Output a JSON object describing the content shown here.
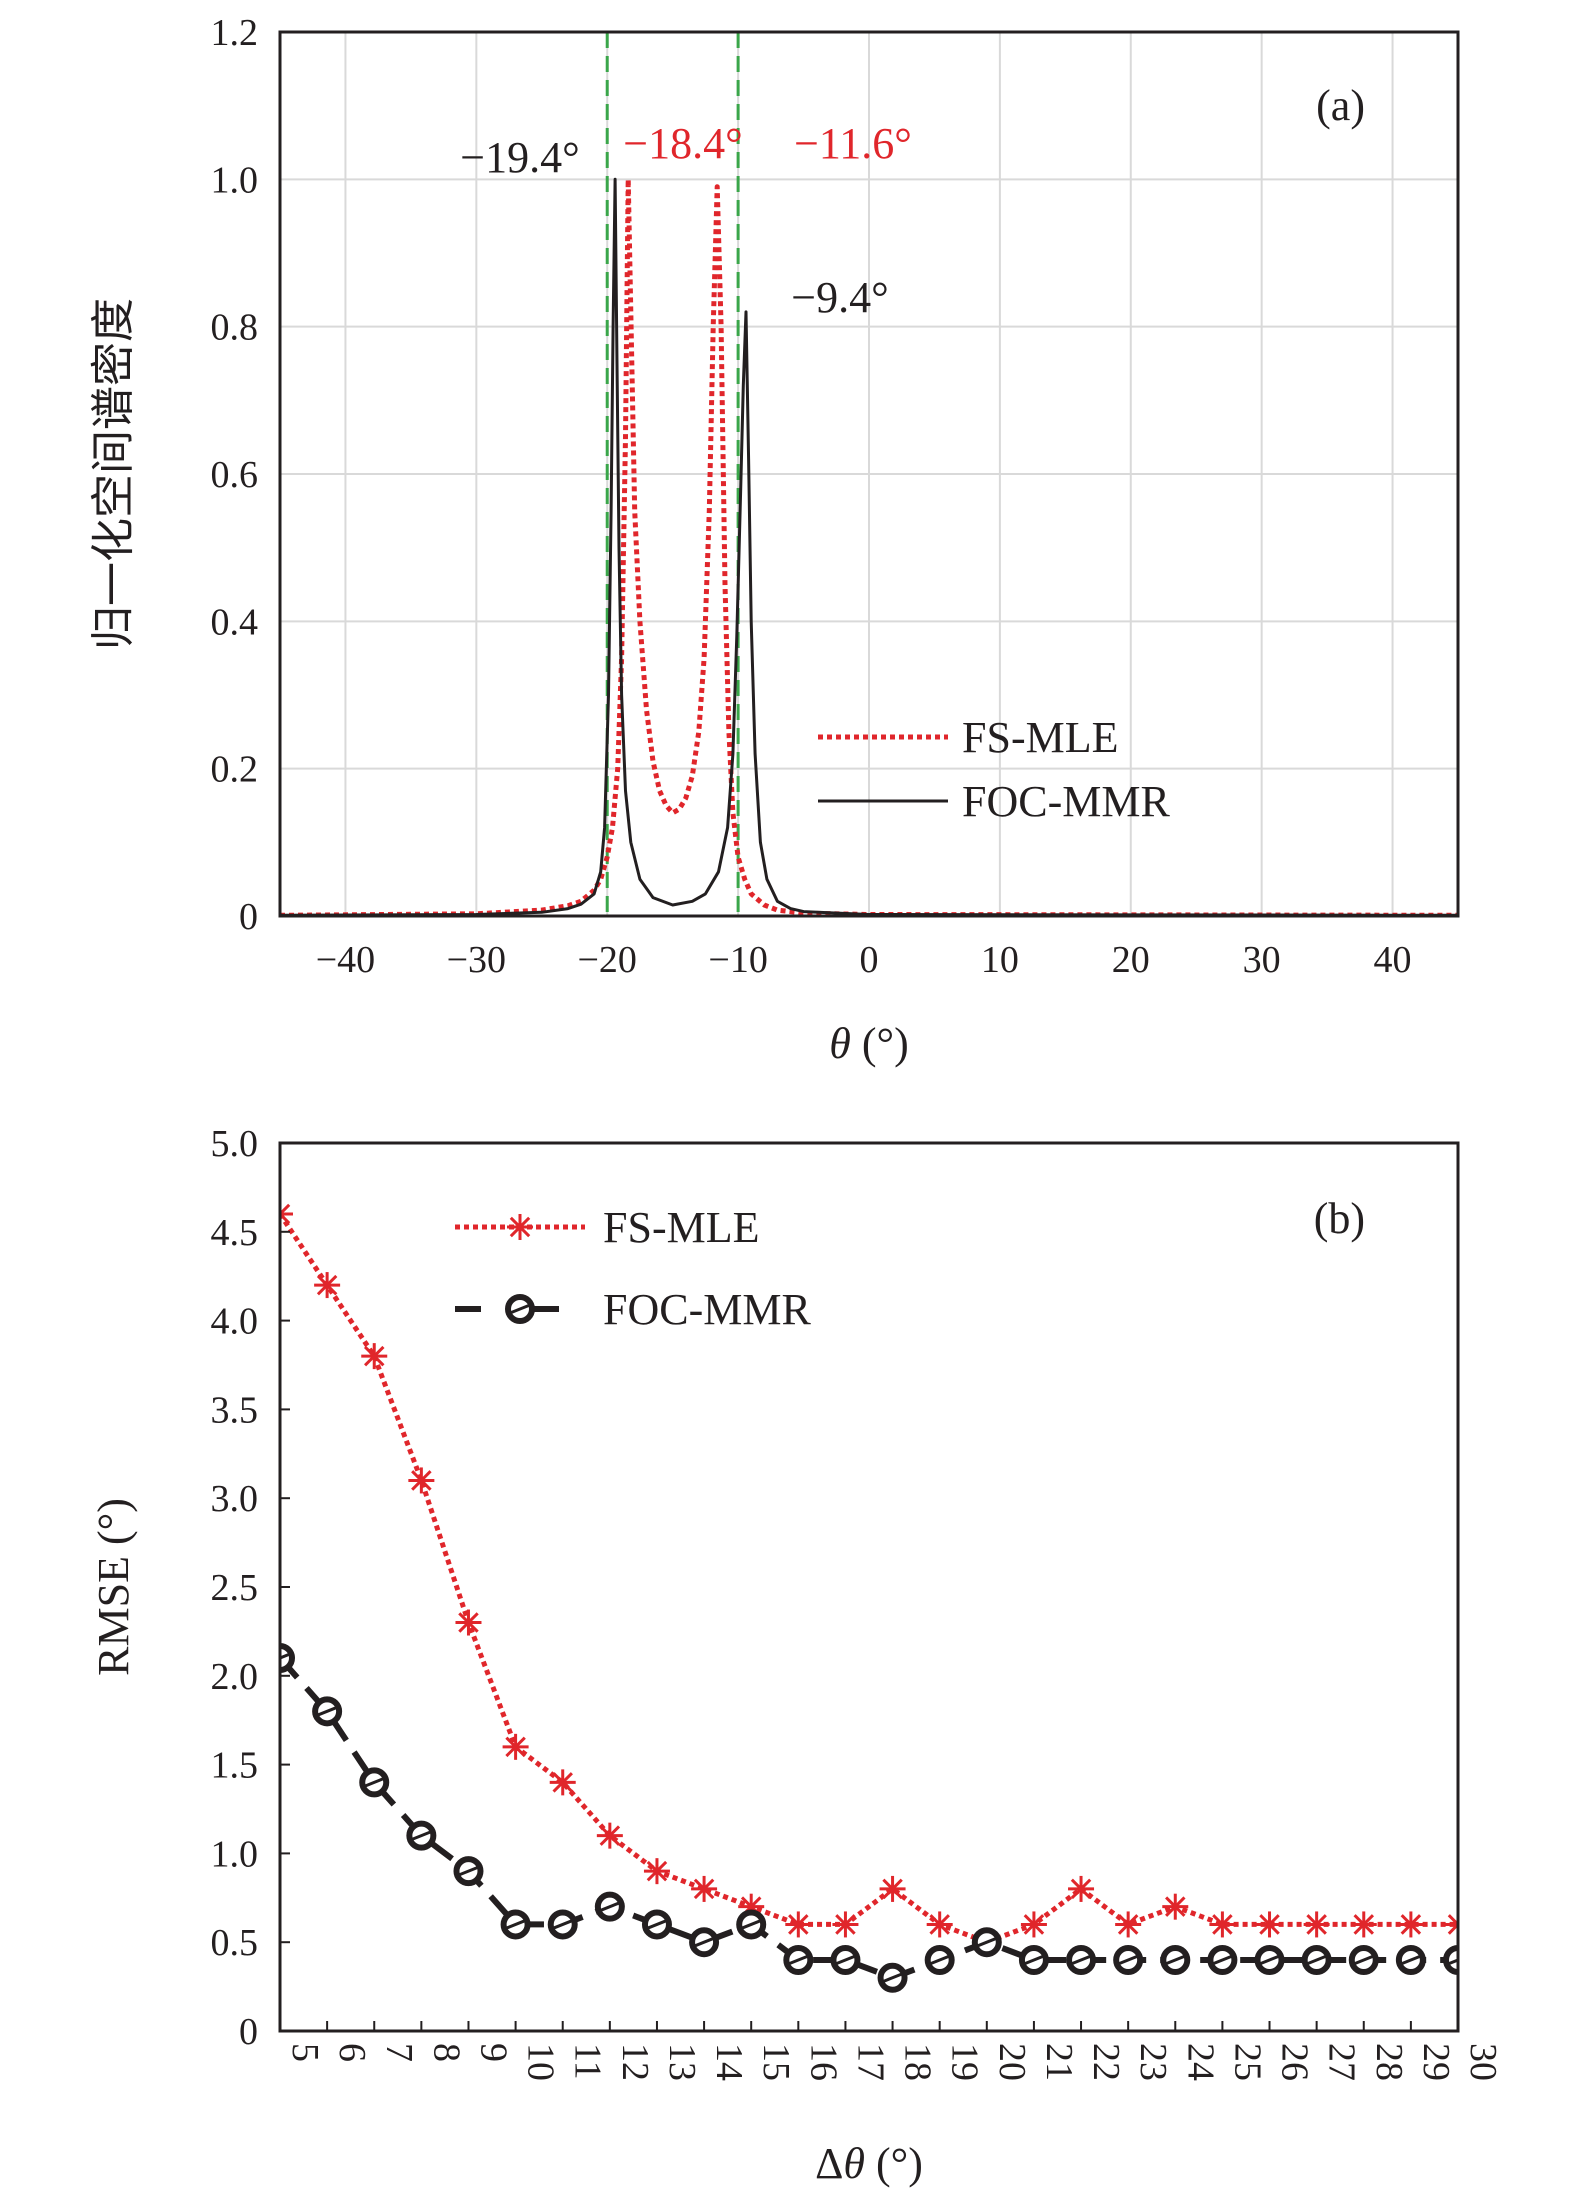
{
  "colors": {
    "fs_mle": "#e0262b",
    "foc_mmr": "#231f20",
    "guide": "#3aa64a",
    "grid": "#d9d9d9"
  },
  "chart_data": [
    {
      "type": "line",
      "panel_label": "(a)",
      "xlabel": "θ (°)",
      "ylabel": "归一化空间谱密度",
      "xlim": [
        -45,
        45
      ],
      "ylim": [
        0,
        1.2
      ],
      "xticks": [
        -40,
        -30,
        -20,
        -10,
        0,
        10,
        20,
        30,
        40
      ],
      "xtick_labels": [
        "−40",
        "−30",
        "−20",
        "−10",
        "0",
        "10",
        "20",
        "30",
        "40"
      ],
      "yticks": [
        0,
        0.2,
        0.4,
        0.6,
        0.8,
        1.0,
        1.2
      ],
      "ytick_labels": [
        "0",
        "0.2",
        "0.4",
        "0.6",
        "0.8",
        "1.0",
        "1.2"
      ],
      "grid": true,
      "legend_position": "lower-right",
      "vertical_guides": [
        -20,
        -10
      ],
      "series": [
        {
          "name": "FS-MLE",
          "style": "dotted",
          "peaks": [
            {
              "x": -18.4,
              "y": 1.0
            },
            {
              "x": -11.6,
              "y": 0.99
            }
          ],
          "x": [
            -45,
            -30,
            -25,
            -23,
            -22,
            -21,
            -20.5,
            -20,
            -19.6,
            -19.2,
            -18.9,
            -18.6,
            -18.4,
            -18.2,
            -17.9,
            -17.5,
            -17,
            -16.5,
            -16,
            -15.5,
            -15,
            -14.5,
            -14,
            -13.5,
            -13,
            -12.6,
            -12.2,
            -11.9,
            -11.6,
            -11.3,
            -11,
            -10.7,
            -10.4,
            -10,
            -9.5,
            -9,
            -8,
            -7,
            -5,
            0,
            45
          ],
          "y": [
            0.001,
            0.003,
            0.008,
            0.014,
            0.02,
            0.035,
            0.05,
            0.08,
            0.12,
            0.2,
            0.35,
            0.65,
            1.0,
            0.82,
            0.55,
            0.4,
            0.28,
            0.21,
            0.17,
            0.15,
            0.14,
            0.145,
            0.16,
            0.19,
            0.25,
            0.35,
            0.55,
            0.8,
            0.99,
            0.8,
            0.45,
            0.25,
            0.14,
            0.08,
            0.05,
            0.03,
            0.015,
            0.008,
            0.004,
            0.002,
            0.001
          ]
        },
        {
          "name": "FOC-MMR",
          "style": "solid",
          "peaks": [
            {
              "x": -19.4,
              "y": 1.0
            },
            {
              "x": -9.4,
              "y": 0.82
            }
          ],
          "x": [
            -45,
            -30,
            -25,
            -23,
            -22,
            -21,
            -20.5,
            -20.2,
            -19.9,
            -19.7,
            -19.55,
            -19.4,
            -19.25,
            -19.1,
            -18.9,
            -18.6,
            -18.2,
            -17.5,
            -16.5,
            -15,
            -13.5,
            -12.5,
            -11.5,
            -10.8,
            -10.4,
            -10.1,
            -9.8,
            -9.6,
            -9.4,
            -9.2,
            -9.0,
            -8.7,
            -8.3,
            -7.8,
            -7,
            -6,
            -5,
            0,
            45
          ],
          "y": [
            0.001,
            0.002,
            0.005,
            0.01,
            0.016,
            0.03,
            0.06,
            0.12,
            0.3,
            0.55,
            0.8,
            1.0,
            0.75,
            0.5,
            0.3,
            0.17,
            0.1,
            0.05,
            0.025,
            0.015,
            0.02,
            0.03,
            0.06,
            0.12,
            0.22,
            0.38,
            0.58,
            0.72,
            0.82,
            0.62,
            0.4,
            0.22,
            0.1,
            0.05,
            0.02,
            0.01,
            0.006,
            0.002,
            0.001
          ]
        }
      ],
      "annotations": [
        {
          "text": "−19.4°",
          "series": "FOC-MMR",
          "x": -19.4
        },
        {
          "text": "−18.4°",
          "series": "FS-MLE",
          "x": -18.4
        },
        {
          "text": "−11.6°",
          "series": "FS-MLE",
          "x": -11.6
        },
        {
          "text": "−9.4°",
          "series": "FOC-MMR",
          "x": -9.4
        }
      ]
    },
    {
      "type": "line",
      "panel_label": "(b)",
      "xlabel": "Δθ (°)",
      "ylabel": "RMSE (°)",
      "xlim": [
        5,
        30
      ],
      "ylim": [
        0,
        5.0
      ],
      "x": [
        5,
        6,
        7,
        8,
        9,
        10,
        11,
        12,
        13,
        14,
        15,
        16,
        17,
        18,
        19,
        20,
        21,
        22,
        23,
        24,
        25,
        26,
        27,
        28,
        29,
        30
      ],
      "xtick_labels": [
        "5",
        "6",
        "7",
        "8",
        "9",
        "10",
        "11",
        "12",
        "13",
        "14",
        "15",
        "16",
        "17",
        "18",
        "19",
        "20",
        "21",
        "22",
        "23",
        "24",
        "25",
        "26",
        "27",
        "28",
        "29",
        "30"
      ],
      "yticks": [
        0,
        0.5,
        1.0,
        1.5,
        2.0,
        2.5,
        3.0,
        3.5,
        4.0,
        4.5,
        5.0
      ],
      "ytick_labels": [
        "0",
        "0.5",
        "1.0",
        "1.5",
        "2.0",
        "2.5",
        "3.0",
        "3.5",
        "4.0",
        "4.5",
        "5.0"
      ],
      "grid": false,
      "legend_position": "top-left",
      "series": [
        {
          "name": "FS-MLE",
          "style": "dotted",
          "marker": "asterisk",
          "values": [
            4.6,
            4.2,
            3.8,
            3.1,
            2.3,
            1.6,
            1.4,
            1.1,
            0.9,
            0.8,
            0.7,
            0.6,
            0.6,
            0.8,
            0.6,
            0.5,
            0.6,
            0.8,
            0.6,
            0.7,
            0.6,
            0.6,
            0.6,
            0.6,
            0.6,
            0.6
          ]
        },
        {
          "name": "FOC-MMR",
          "style": "dashed",
          "marker": "circle",
          "values": [
            2.1,
            1.8,
            1.4,
            1.1,
            0.9,
            0.6,
            0.6,
            0.7,
            0.6,
            0.5,
            0.6,
            0.4,
            0.4,
            0.3,
            0.4,
            0.5,
            0.4,
            0.4,
            0.4,
            0.4,
            0.4,
            0.4,
            0.4,
            0.4,
            0.4,
            0.4
          ]
        }
      ]
    }
  ]
}
